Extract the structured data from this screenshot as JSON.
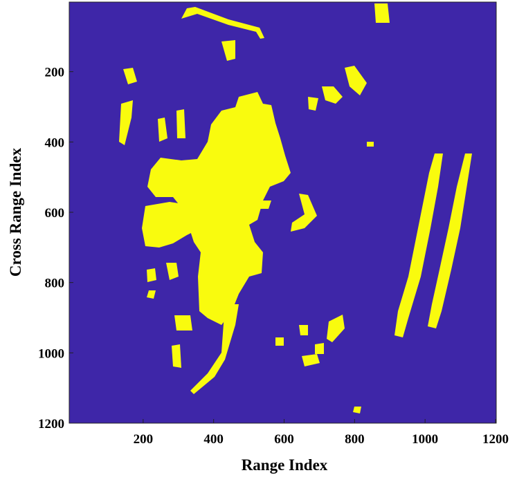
{
  "chart_data": {
    "type": "image",
    "xlabel": "Range Index",
    "ylabel": "Cross Range Index",
    "xlim": [
      0,
      1200
    ],
    "ylim": [
      0,
      1200
    ],
    "y_reversed": true,
    "xticks": [
      200,
      400,
      600,
      800,
      1000,
      1200
    ],
    "yticks": [
      200,
      400,
      600,
      800,
      1000,
      1200
    ],
    "background_color": "#3e26a8",
    "foreground_color": "#f9fb0e"
  }
}
